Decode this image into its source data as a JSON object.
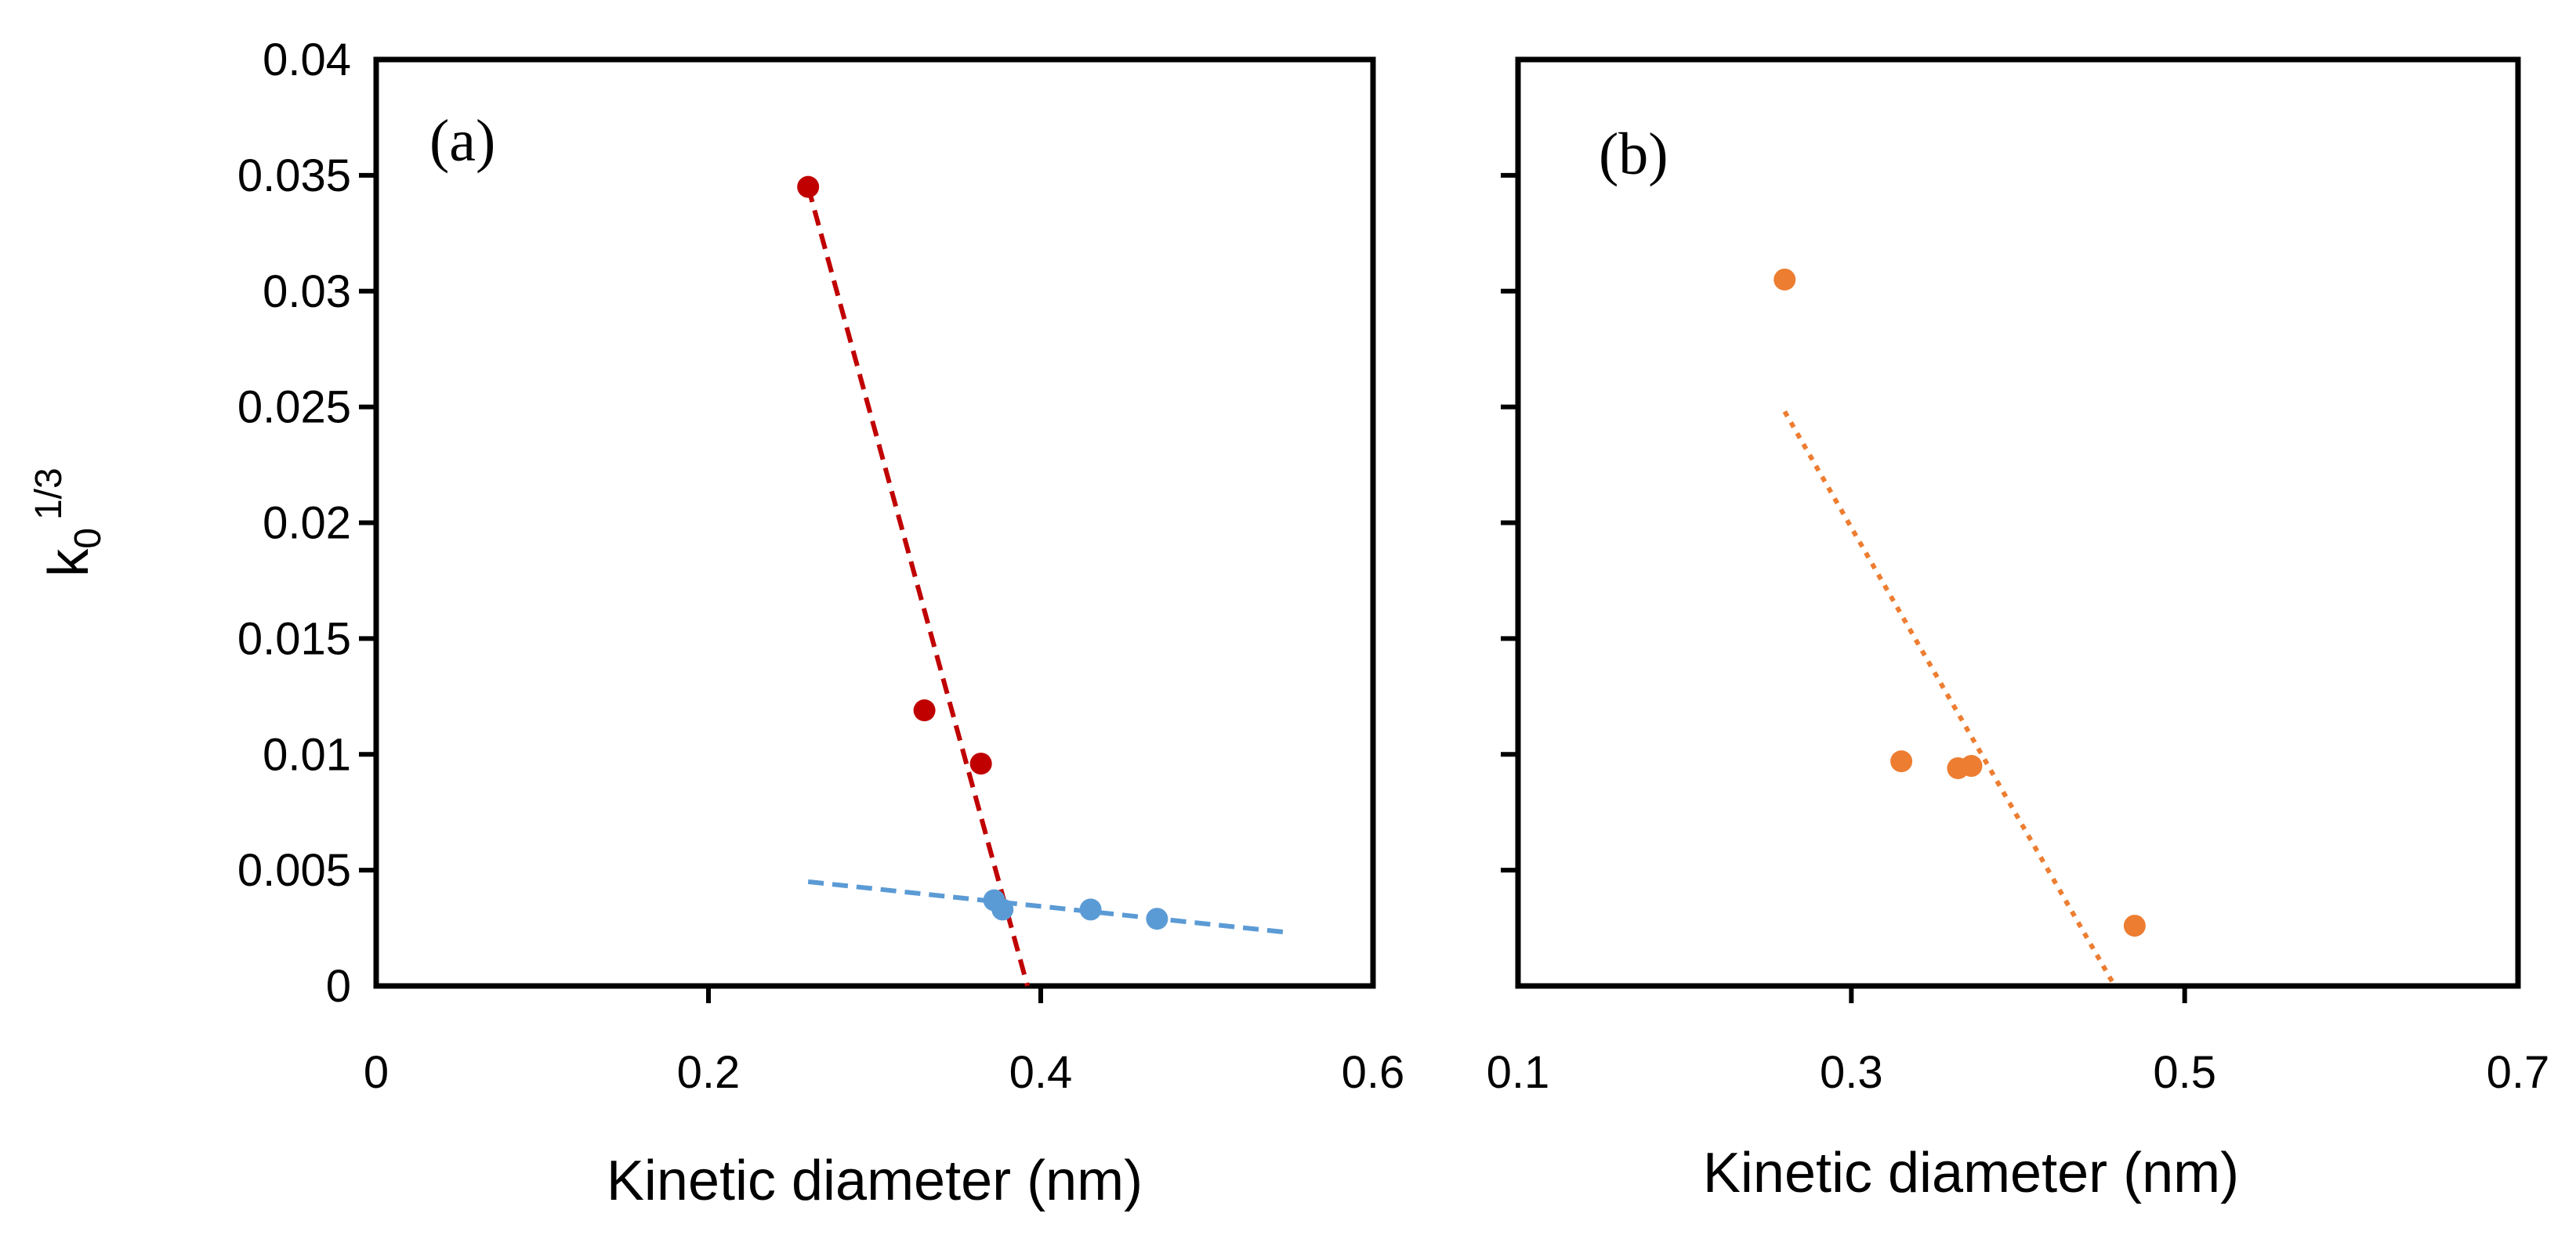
{
  "chart_data": [
    {
      "type": "scatter",
      "panel_label": "(a)",
      "xlabel": "Kinetic diameter (nm)",
      "ylabel_main": "k",
      "ylabel_sub": "0",
      "ylabel_sup": "1/3",
      "xlim": [
        0,
        0.6
      ],
      "ylim": [
        0,
        0.04
      ],
      "x_ticks": [
        0,
        0.2,
        0.4,
        0.6
      ],
      "x_tick_labels": [
        "0",
        "0.2",
        "0.4",
        "0.6"
      ],
      "y_ticks": [
        0,
        0.005,
        0.01,
        0.015,
        0.02,
        0.025,
        0.03,
        0.035,
        0.04
      ],
      "y_tick_labels": [
        "0",
        "0.005",
        "0.01",
        "0.015",
        "0.02",
        "0.025",
        "0.03",
        "0.035",
        "0.04"
      ],
      "grid": false,
      "series": [
        {
          "name": "red series",
          "color": "#c00000",
          "x": [
            0.26,
            0.33,
            0.364
          ],
          "y": [
            0.0345,
            0.0119,
            0.0096
          ],
          "trendline": {
            "style": "dashed",
            "x": [
              0.26,
              0.392
            ],
            "y": [
              0.0345,
              0.0
            ]
          }
        },
        {
          "name": "blue series",
          "color": "#5b9bd5",
          "x": [
            0.372,
            0.377,
            0.43,
            0.47
          ],
          "y": [
            0.0037,
            0.0033,
            0.0033,
            0.0029
          ],
          "trendline": {
            "style": "dashed",
            "x": [
              0.26,
              0.55
            ],
            "y": [
              0.0045,
              0.0023
            ]
          }
        }
      ]
    },
    {
      "type": "scatter",
      "panel_label": "(b)",
      "xlabel": "Kinetic diameter (nm)",
      "xlim": [
        0.1,
        0.7
      ],
      "ylim": [
        0,
        0.04
      ],
      "x_ticks": [
        0.1,
        0.3,
        0.5,
        0.7
      ],
      "x_tick_labels": [
        "0.1",
        "0.3",
        "0.5",
        "0.7"
      ],
      "y_ticks": [
        0,
        0.005,
        0.01,
        0.015,
        0.02,
        0.025,
        0.03,
        0.035,
        0.04
      ],
      "y_tick_labels": [],
      "grid": false,
      "series": [
        {
          "name": "orange series",
          "color": "#ed7d31",
          "x": [
            0.26,
            0.33,
            0.364,
            0.372,
            0.47
          ],
          "y": [
            0.0305,
            0.0097,
            0.0094,
            0.0095,
            0.0026
          ],
          "trendline": {
            "style": "dotted",
            "x": [
              0.26,
              0.458
            ],
            "y": [
              0.0248,
              0.0
            ]
          }
        }
      ]
    }
  ]
}
